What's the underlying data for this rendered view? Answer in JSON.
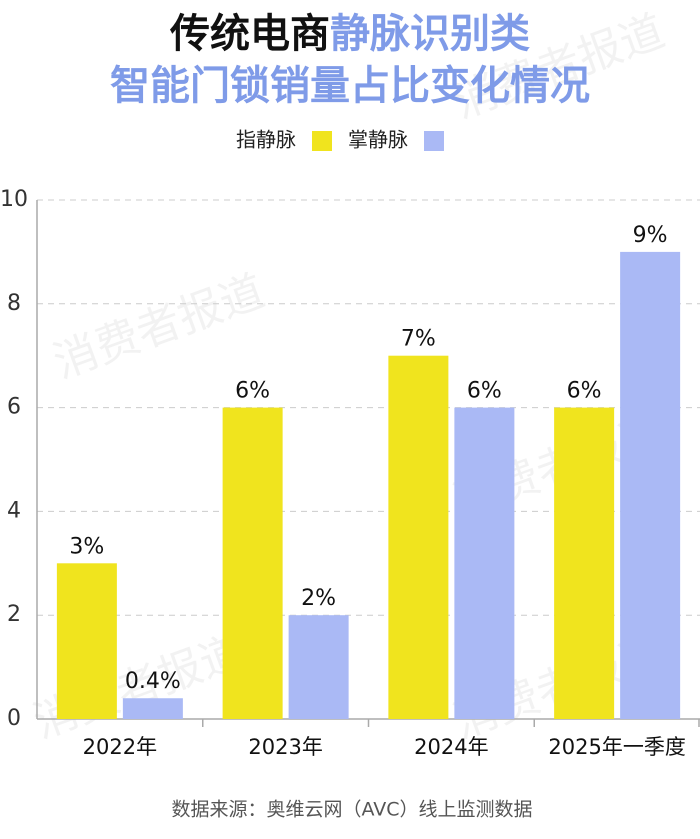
{
  "chart_data": {
    "type": "bar",
    "title_lines": [
      [
        {
          "text": "传统电商",
          "color": "#111111"
        },
        {
          "text": "静脉识别类",
          "color": "#7f9be8"
        }
      ],
      [
        {
          "text": "智能门锁销量占比变化情况",
          "color": "#7f9be8"
        }
      ]
    ],
    "categories": [
      "2022年",
      "2023年",
      "2024年",
      "2025年一季度"
    ],
    "series": [
      {
        "name": "指静脉",
        "color": "#f0e41e",
        "values": [
          3,
          6,
          7,
          6
        ],
        "value_labels": [
          "3%",
          "6%",
          "7%",
          "6%"
        ]
      },
      {
        "name": "掌静脉",
        "color": "#aab9f5",
        "values": [
          0.4,
          2,
          6,
          9
        ],
        "value_labels": [
          "0.4%",
          "2%",
          "6%",
          "9%"
        ]
      }
    ],
    "ylim": [
      0,
      10
    ],
    "yticks": [
      0,
      2,
      4,
      6,
      8,
      10
    ],
    "grid": true,
    "source": "数据来源：奥维云网（AVC）线上监测数据",
    "watermark": "消费者报道"
  }
}
